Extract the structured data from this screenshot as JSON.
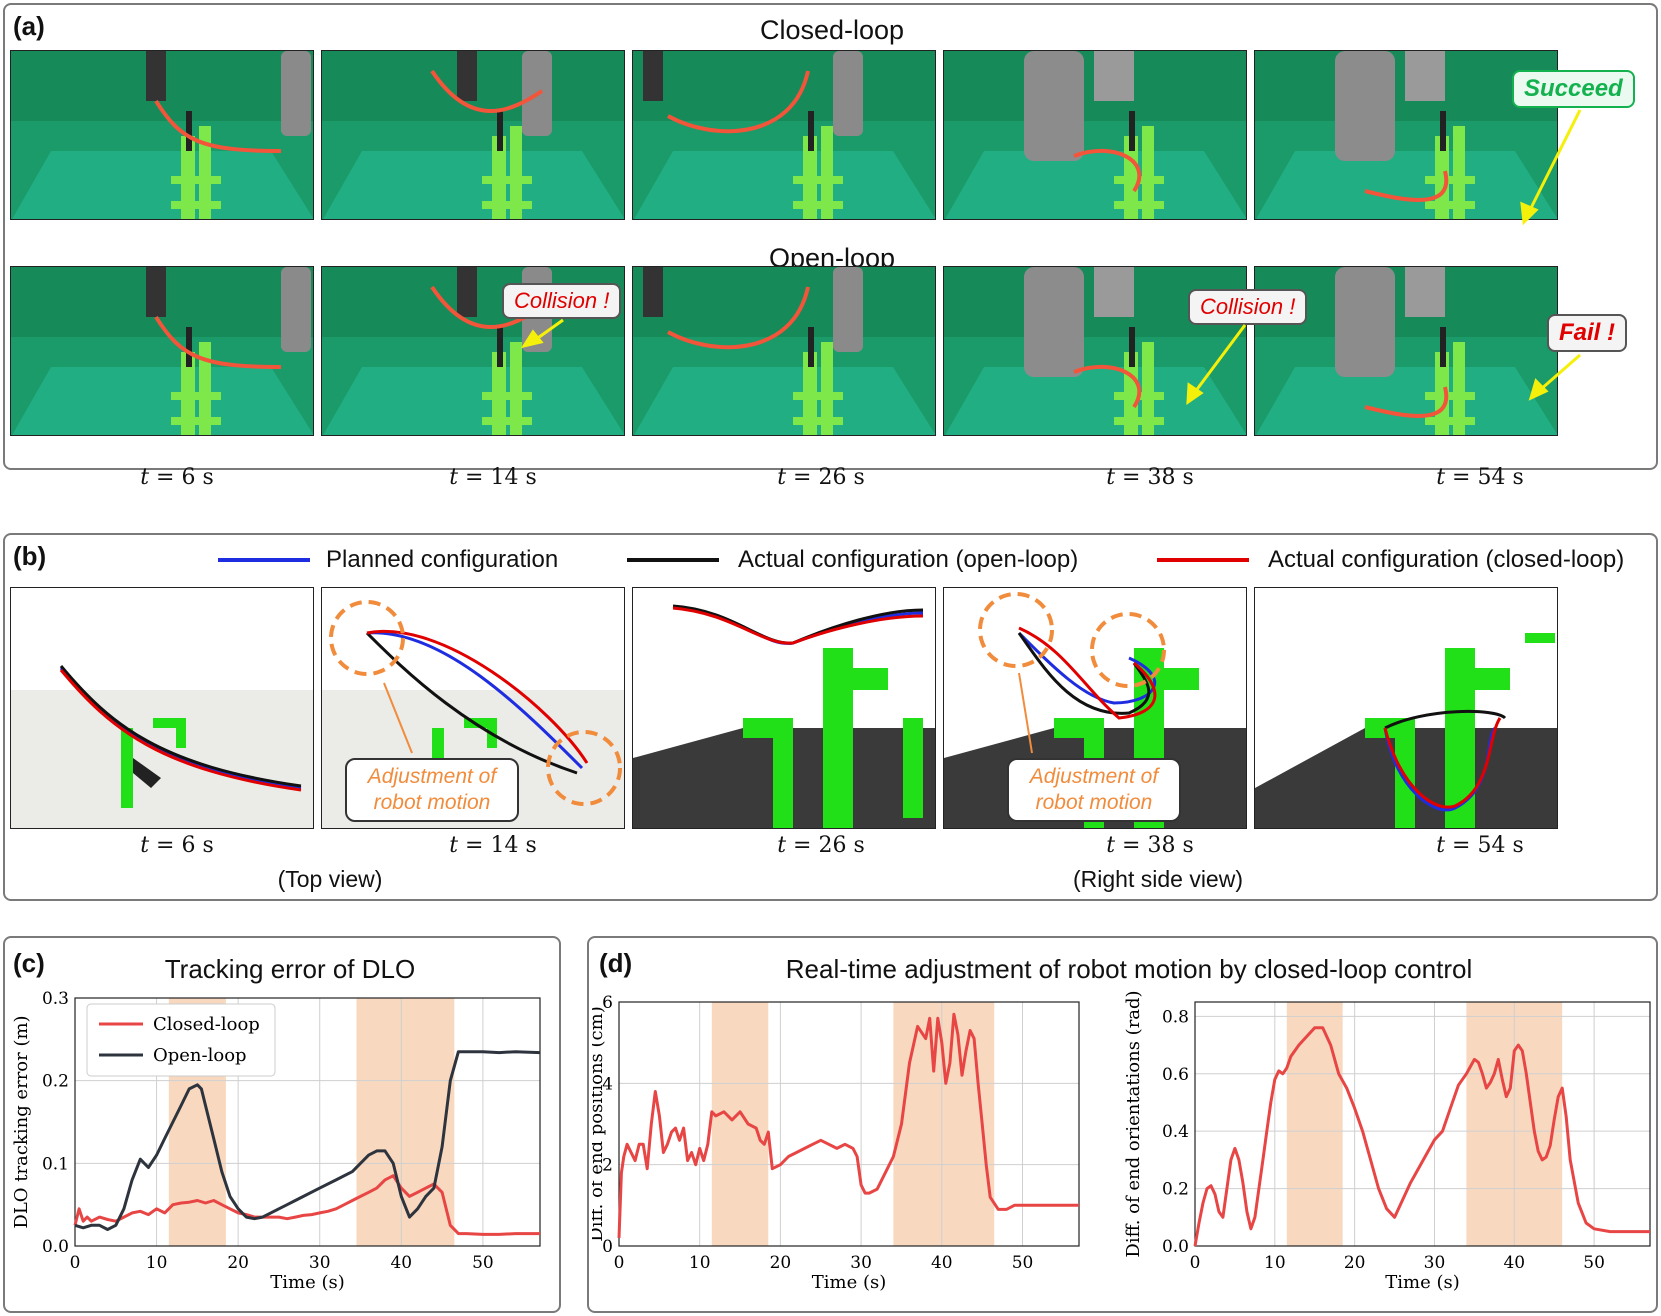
{
  "panel_a": {
    "tag": "(a)",
    "closed_title": "Closed-loop",
    "open_title": "Open-loop",
    "times": [
      "6 s",
      "14 s",
      "26 s",
      "38 s",
      "54 s"
    ],
    "t_symbol": "t",
    "callouts": {
      "succeed": "Succeed",
      "collision1": "Collision !",
      "collision2": "Collision !",
      "fail": "Fail !"
    }
  },
  "panel_b": {
    "tag": "(b)",
    "legend": {
      "planned": "Planned configuration",
      "open": "Actual configuration (open-loop)",
      "closed": "Actual configuration (closed-loop)"
    },
    "times": [
      "6 s",
      "14 s",
      "26 s",
      "38 s",
      "54 s"
    ],
    "t_symbol": "t",
    "top_view": "(Top view)",
    "side_view": "(Right side view)",
    "adjust_line1": "Adjustment of",
    "adjust_line2": "robot motion"
  },
  "colors": {
    "closed": "#e84545",
    "open": "#2e343d",
    "planned": "#1f2de0",
    "shade": "#f8d9c0",
    "green_screen": "#1b9a6a",
    "rack": "#7ee84a",
    "orange": "#f08c3c"
  },
  "panel_c": {
    "tag": "(c)",
    "title": "Tracking error of DLO",
    "chart_data": {
      "type": "line",
      "title": "Tracking error of DLO",
      "xlabel": "Time (s)",
      "ylabel": "DLO tracking error (m)",
      "xlim": [
        0,
        57
      ],
      "ylim": [
        0,
        0.3
      ],
      "xticks": [
        0,
        10,
        20,
        30,
        40,
        50
      ],
      "yticks": [
        0.0,
        0.1,
        0.2,
        0.3
      ],
      "ytick_labels": [
        "0.0",
        "0.1",
        "0.2",
        "0.3"
      ],
      "shaded_x": [
        [
          11.5,
          18.5
        ],
        [
          34.5,
          46.5
        ]
      ],
      "legend_position": "top-left",
      "grid": true,
      "series": [
        {
          "name": "Closed-loop",
          "color": "#e84545",
          "x": [
            0,
            0.5,
            1,
            1.5,
            2,
            3,
            4,
            5,
            6,
            7,
            8,
            9,
            10,
            11,
            12,
            13,
            14,
            15,
            16,
            17,
            18,
            19,
            20,
            21,
            22,
            23,
            24,
            25,
            26,
            27,
            28,
            29,
            30,
            31,
            32,
            33,
            34,
            35,
            36,
            37,
            38,
            39,
            40,
            41,
            42,
            43,
            44,
            45,
            46,
            47,
            48,
            50,
            52,
            54,
            57
          ],
          "y": [
            0.025,
            0.045,
            0.03,
            0.035,
            0.03,
            0.035,
            0.032,
            0.03,
            0.035,
            0.04,
            0.042,
            0.038,
            0.045,
            0.04,
            0.05,
            0.052,
            0.053,
            0.055,
            0.052,
            0.055,
            0.05,
            0.045,
            0.04,
            0.038,
            0.035,
            0.035,
            0.035,
            0.035,
            0.033,
            0.035,
            0.037,
            0.038,
            0.04,
            0.042,
            0.045,
            0.05,
            0.055,
            0.06,
            0.065,
            0.07,
            0.08,
            0.085,
            0.07,
            0.06,
            0.065,
            0.07,
            0.075,
            0.065,
            0.025,
            0.015,
            0.015,
            0.014,
            0.014,
            0.015,
            0.015
          ]
        },
        {
          "name": "Open-loop",
          "color": "#2e343d",
          "x": [
            0,
            1,
            2,
            3,
            4,
            5,
            6,
            7,
            8,
            8.5,
            9,
            10,
            11,
            12,
            13,
            14,
            15,
            15.5,
            16,
            17,
            18,
            19,
            20,
            21,
            22,
            23,
            24,
            25,
            26,
            27,
            28,
            30,
            32,
            34,
            35,
            36,
            37,
            38,
            39,
            40,
            41,
            42,
            43,
            44,
            45,
            46,
            47,
            48,
            50,
            52,
            54,
            57
          ],
          "y": [
            0.025,
            0.022,
            0.025,
            0.025,
            0.02,
            0.025,
            0.045,
            0.08,
            0.105,
            0.1,
            0.095,
            0.11,
            0.13,
            0.15,
            0.17,
            0.19,
            0.195,
            0.19,
            0.17,
            0.13,
            0.09,
            0.06,
            0.045,
            0.035,
            0.033,
            0.035,
            0.04,
            0.045,
            0.05,
            0.055,
            0.06,
            0.07,
            0.08,
            0.09,
            0.1,
            0.11,
            0.115,
            0.115,
            0.1,
            0.06,
            0.035,
            0.045,
            0.06,
            0.07,
            0.12,
            0.2,
            0.235,
            0.235,
            0.235,
            0.234,
            0.235,
            0.234
          ]
        }
      ]
    }
  },
  "panel_d": {
    "tag": "(d)",
    "title": "Real-time adjustment of robot motion by closed-loop control",
    "chart_data": [
      {
        "type": "line",
        "xlabel": "Time (s)",
        "ylabel": "Diff. of end positions (cm)",
        "xlim": [
          0,
          57
        ],
        "ylim": [
          0,
          6
        ],
        "xticks": [
          0,
          10,
          20,
          30,
          40,
          50
        ],
        "yticks": [
          0,
          2,
          4,
          6
        ],
        "ytick_labels": [
          "0",
          "2",
          "4",
          "6"
        ],
        "shaded_x": [
          [
            11.5,
            18.5
          ],
          [
            34,
            46.5
          ]
        ],
        "grid": true,
        "series": [
          {
            "color": "#e84545",
            "x": [
              0,
              0.3,
              0.6,
              1,
              1.5,
              2,
              2.5,
              3,
              3.5,
              4,
              4.5,
              5,
              5.5,
              6,
              6.5,
              7,
              7.5,
              8,
              8.5,
              9,
              9.5,
              10,
              10.5,
              11,
              11.5,
              12,
              13,
              14,
              15,
              16,
              17,
              17.5,
              18,
              18.5,
              19,
              20,
              21,
              22,
              23,
              24,
              25,
              26,
              27,
              28,
              29,
              29.5,
              30,
              30.5,
              31,
              32,
              33,
              34,
              35,
              36,
              37,
              38,
              38.5,
              39,
              39.5,
              40,
              40.5,
              41,
              41.5,
              42,
              42.5,
              43,
              43.5,
              44,
              44.5,
              45,
              45.5,
              46,
              47,
              48,
              49,
              50,
              52,
              54,
              57
            ],
            "y": [
              0.2,
              1.8,
              2.2,
              2.5,
              2.3,
              2.1,
              2.5,
              2.5,
              1.9,
              3.0,
              3.8,
              3.2,
              2.3,
              2.5,
              2.8,
              2.9,
              2.6,
              2.9,
              2.1,
              2.3,
              2.0,
              2.4,
              2.1,
              2.5,
              3.3,
              3.2,
              3.3,
              3.1,
              3.3,
              3.0,
              2.9,
              2.6,
              2.5,
              2.8,
              1.9,
              2.0,
              2.2,
              2.3,
              2.4,
              2.5,
              2.6,
              2.5,
              2.4,
              2.5,
              2.4,
              2.2,
              1.5,
              1.3,
              1.3,
              1.4,
              1.8,
              2.2,
              3.0,
              4.5,
              5.4,
              5.1,
              5.6,
              4.3,
              5.6,
              5.0,
              4.0,
              4.5,
              5.7,
              5.2,
              4.2,
              4.8,
              5.3,
              5.1,
              4.0,
              3.0,
              2.0,
              1.2,
              0.9,
              0.9,
              1.0,
              1.0,
              1.0,
              1.0,
              1.0
            ]
          }
        ]
      },
      {
        "type": "line",
        "xlabel": "Time (s)",
        "ylabel": "Diff. of end orientations (rad)",
        "xlim": [
          0,
          57
        ],
        "ylim": [
          0,
          0.85
        ],
        "xticks": [
          0,
          10,
          20,
          30,
          40,
          50
        ],
        "yticks": [
          0.0,
          0.2,
          0.4,
          0.6,
          0.8
        ],
        "ytick_labels": [
          "0.0",
          "0.2",
          "0.4",
          "0.6",
          "0.8"
        ],
        "shaded_x": [
          [
            11.5,
            18.5
          ],
          [
            34,
            46
          ]
        ],
        "grid": true,
        "series": [
          {
            "color": "#e84545",
            "x": [
              0,
              0.5,
              1,
              1.5,
              2,
              2.5,
              3,
              3.5,
              4,
              4.5,
              5,
              5.5,
              6,
              6.5,
              7,
              7.5,
              8,
              8.5,
              9,
              9.5,
              10,
              10.5,
              11,
              11.5,
              12,
              13,
              14,
              15,
              16,
              17,
              18,
              19,
              20,
              21,
              22,
              23,
              24,
              25,
              26,
              27,
              28,
              29,
              30,
              31,
              32,
              33,
              34,
              35,
              35.5,
              36,
              36.5,
              37,
              37.5,
              38,
              38.5,
              39,
              39.5,
              40,
              40.5,
              41,
              41.5,
              42,
              42.5,
              43,
              43.5,
              44,
              44.5,
              45,
              45.5,
              46,
              46.5,
              47,
              48,
              49,
              50,
              52,
              54,
              57
            ],
            "y": [
              0.0,
              0.08,
              0.15,
              0.2,
              0.21,
              0.18,
              0.12,
              0.1,
              0.2,
              0.3,
              0.34,
              0.3,
              0.22,
              0.12,
              0.06,
              0.1,
              0.2,
              0.3,
              0.4,
              0.5,
              0.58,
              0.61,
              0.6,
              0.62,
              0.66,
              0.7,
              0.73,
              0.76,
              0.76,
              0.7,
              0.6,
              0.55,
              0.48,
              0.4,
              0.3,
              0.2,
              0.13,
              0.1,
              0.16,
              0.22,
              0.27,
              0.32,
              0.37,
              0.4,
              0.48,
              0.56,
              0.6,
              0.65,
              0.64,
              0.6,
              0.55,
              0.57,
              0.6,
              0.65,
              0.58,
              0.52,
              0.55,
              0.68,
              0.7,
              0.68,
              0.6,
              0.5,
              0.4,
              0.33,
              0.3,
              0.31,
              0.35,
              0.44,
              0.52,
              0.55,
              0.45,
              0.3,
              0.15,
              0.08,
              0.06,
              0.05,
              0.05,
              0.05
            ]
          }
        ]
      }
    ]
  }
}
